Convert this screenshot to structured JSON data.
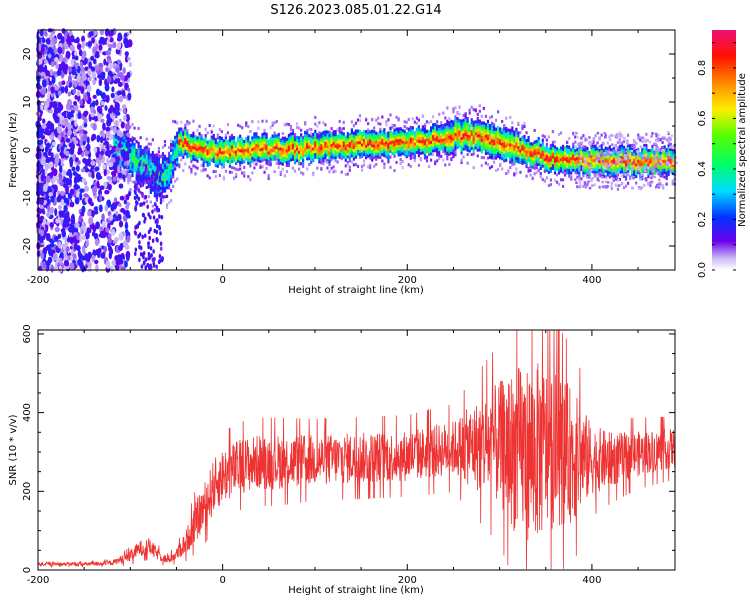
{
  "title": "S126.2023.085.01.22.G14",
  "chart_data": [
    {
      "type": "heatmap",
      "xlabel": "Height of straight line (km)",
      "ylabel": "Frequency (Hz)",
      "xlim": [
        -200,
        490
      ],
      "ylim": [
        -25,
        25
      ],
      "xticks": [
        -200,
        0,
        200,
        400
      ],
      "yticks": [
        -20,
        -10,
        0,
        10,
        20
      ],
      "colorbar": {
        "label": "Normalized spectral amplitude",
        "range": [
          0.0,
          0.95
        ],
        "ticks": [
          0.0,
          0.2,
          0.4,
          0.6,
          0.8
        ]
      },
      "ridge": {
        "x": [
          -130,
          -110,
          -95,
          -80,
          -70,
          -60,
          -55,
          -50,
          -45,
          -35,
          -20,
          0,
          20,
          40,
          60,
          80,
          100,
          120,
          140,
          160,
          180,
          200,
          220,
          240,
          260,
          280,
          300,
          320,
          340,
          360,
          380,
          400,
          420,
          440,
          460,
          490
        ],
        "freq_hz": [
          2,
          0,
          -2,
          -4,
          -6,
          -5,
          -1,
          1,
          2,
          1,
          0,
          0,
          0,
          0.5,
          0.5,
          0.5,
          1,
          1,
          1.5,
          1.5,
          1.5,
          2,
          2.5,
          3,
          3.5,
          3,
          2,
          0.5,
          -0.5,
          -1.5,
          -1.5,
          -2,
          -2,
          -2,
          -2,
          -2
        ]
      },
      "scatter_region_x": [
        -200,
        -120
      ]
    },
    {
      "type": "line",
      "xlabel": "Height of straight line (km)",
      "ylabel": "SNR (10 * v/v)",
      "xlim": [
        -200,
        490
      ],
      "ylim": [
        0,
        610
      ],
      "xticks": [
        -200,
        0,
        200,
        400
      ],
      "yticks": [
        0,
        200,
        400,
        600
      ],
      "color": "#ee3333",
      "envelope": {
        "x": [
          -200,
          -150,
          -120,
          -100,
          -90,
          -80,
          -70,
          -60,
          -50,
          -40,
          -30,
          -20,
          -10,
          0,
          20,
          40,
          60,
          100,
          150,
          200,
          250,
          300,
          320,
          340,
          360,
          380,
          400,
          420,
          440,
          460,
          490
        ],
        "mean": [
          15,
          15,
          18,
          35,
          55,
          60,
          40,
          25,
          40,
          70,
          120,
          160,
          210,
          240,
          265,
          275,
          275,
          280,
          285,
          290,
          310,
          320,
          300,
          300,
          310,
          290,
          280,
          280,
          290,
          300,
          310
        ],
        "spread": [
          4,
          5,
          6,
          15,
          20,
          22,
          15,
          10,
          15,
          30,
          50,
          60,
          70,
          70,
          70,
          70,
          70,
          65,
          65,
          65,
          70,
          160,
          220,
          230,
          200,
          170,
          90,
          70,
          60,
          55,
          50
        ]
      }
    }
  ]
}
